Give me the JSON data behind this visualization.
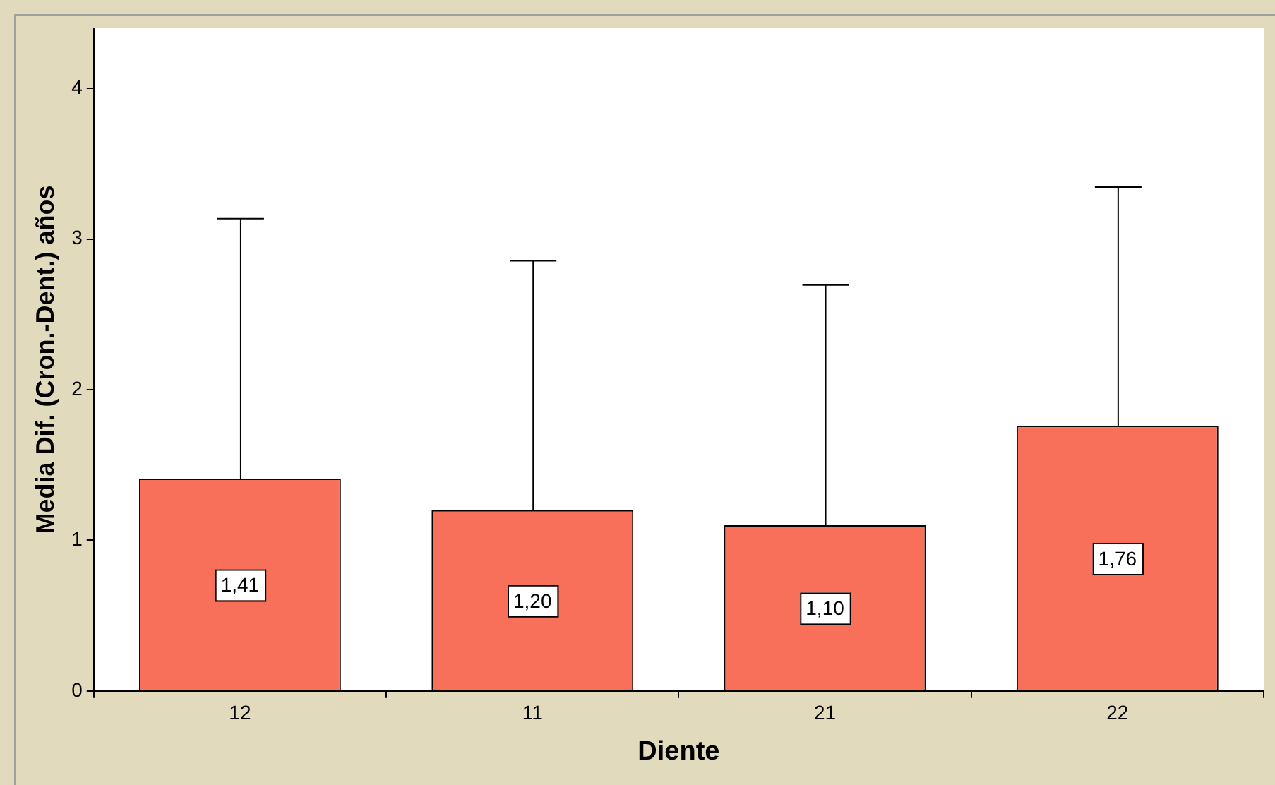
{
  "chart_data": {
    "type": "bar",
    "xlabel": "Diente",
    "ylabel": "Media Dif. (Cron.-Dent.) años",
    "categories": [
      "12",
      "11",
      "21",
      "22"
    ],
    "values": [
      1.41,
      1.2,
      1.1,
      1.76
    ],
    "value_labels": [
      "1,41",
      "1,20",
      "1,10",
      "1,76"
    ],
    "errors": [
      [
        1.41,
        3.14
      ],
      [
        1.2,
        2.86
      ],
      [
        1.1,
        2.7
      ],
      [
        1.76,
        3.35
      ]
    ],
    "color": "#f87059",
    "ylim": [
      0,
      4.4
    ],
    "yticks": [
      0,
      1,
      2,
      3,
      4
    ],
    "grid": false,
    "legend": false
  }
}
